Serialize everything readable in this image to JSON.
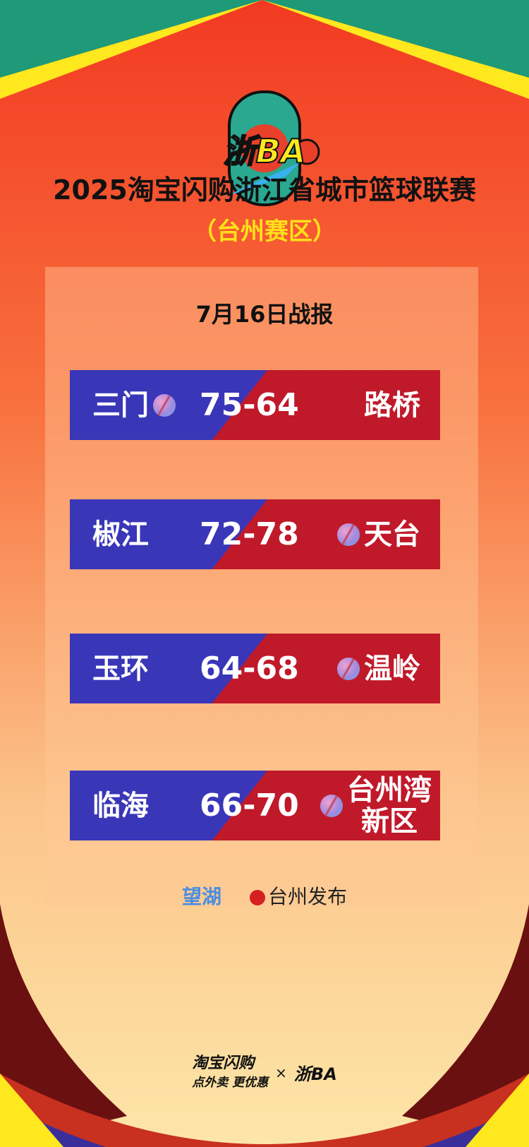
{
  "header": {
    "logo_text": "浙BA",
    "title": "2025淘宝闪购浙江省城市篮球联赛",
    "subtitle": "（台州赛区）"
  },
  "report": {
    "date_title": "7月16日战报",
    "games": [
      {
        "home": "三门",
        "score": "75-64",
        "away": "路桥",
        "winner": "home"
      },
      {
        "home": "椒江",
        "score": "72-78",
        "away": "天台",
        "winner": "away"
      },
      {
        "home": "玉环",
        "score": "64-68",
        "away": "温岭",
        "winner": "away"
      },
      {
        "home": "临海",
        "score": "66-70",
        "away": "台州湾新区",
        "winner": "away"
      }
    ]
  },
  "sources": {
    "source1": "望湖",
    "source2": "台州发布"
  },
  "sponsor": {
    "brand": "淘宝闪购",
    "slogan": "点外卖 更优惠",
    "times": "×",
    "partner_logo": "浙BA"
  },
  "colors": {
    "home_band": "#3a36b8",
    "away_band": "#c0192a",
    "subtitle": "#ffe01a",
    "top_green": "#1e9a78"
  }
}
